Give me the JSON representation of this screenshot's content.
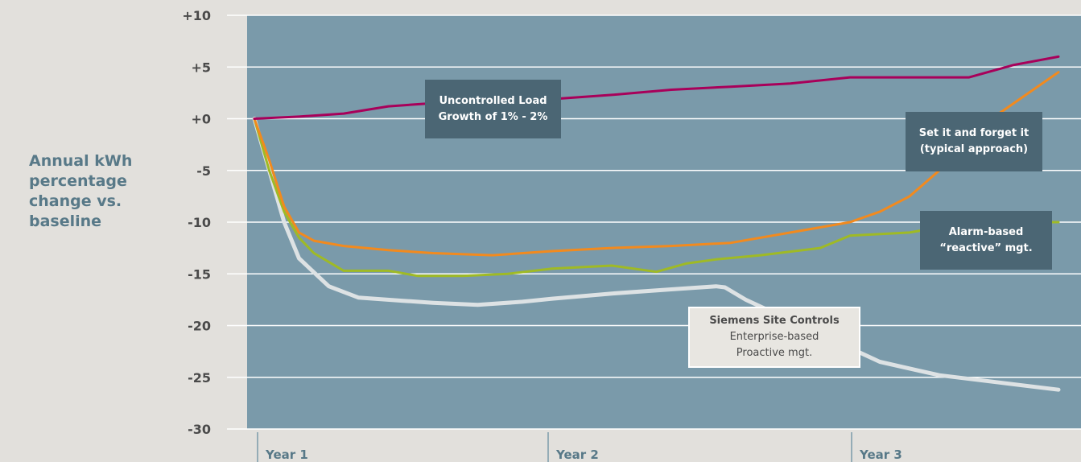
{
  "y_axis_label": "Annual kWh percentage change vs. baseline",
  "annotations": {
    "uncontrolled": [
      "Uncontrolled Load",
      "Growth of 1% - 2%"
    ],
    "set_forget": [
      "Set it and forget it",
      "(typical approach)"
    ],
    "alarm": [
      "Alarm-based",
      "“reactive” mgt."
    ],
    "siemens": {
      "title": "Siemens Site Controls",
      "line1": "Enterprise-based",
      "line2": "Proactive mgt."
    }
  },
  "colors": {
    "background": "#e2e0dc",
    "plot_area": "#7a9aaa",
    "grid": "#ffffff",
    "uncontrolled": "#a8005a",
    "set_forget": "#f28a1e",
    "alarm": "#9fba25",
    "siemens": "#dde2e4"
  },
  "chart_data": {
    "type": "line",
    "ylabel": "Annual kWh percentage change vs. baseline",
    "ylim": [
      -30,
      10
    ],
    "yticks": [
      10,
      5,
      0,
      -5,
      -10,
      -15,
      -20,
      -25,
      -30
    ],
    "ytick_labels": [
      "+10",
      "+5",
      "+0",
      "-5",
      "-10",
      "-15",
      "-20",
      "-25",
      "-30"
    ],
    "x_categories": [
      "Year 1",
      "Year 2",
      "Year 3"
    ],
    "xlim": [
      0,
      2.7
    ],
    "grid": true,
    "series": [
      {
        "key": "uncontrolled",
        "x": [
          0,
          0.15,
          0.3,
          0.45,
          0.6,
          0.8,
          1.0,
          1.2,
          1.4,
          1.6,
          1.8,
          2.0,
          2.2,
          2.4,
          2.55,
          2.7
        ],
        "y": [
          0,
          0.2,
          0.5,
          1.2,
          1.5,
          1.7,
          1.9,
          2.3,
          2.8,
          3.1,
          3.4,
          4.0,
          4.0,
          4.0,
          5.2,
          6.0
        ]
      },
      {
        "key": "set_forget",
        "x": [
          0,
          0.05,
          0.1,
          0.15,
          0.2,
          0.3,
          0.45,
          0.6,
          0.8,
          1.0,
          1.2,
          1.4,
          1.6,
          1.8,
          2.0,
          2.1,
          2.2,
          2.3,
          2.4,
          2.5,
          2.6,
          2.7
        ],
        "y": [
          0,
          -4,
          -8.5,
          -11,
          -11.8,
          -12.3,
          -12.7,
          -13.0,
          -13.2,
          -12.8,
          -12.5,
          -12.3,
          -12.0,
          -11.0,
          -10.0,
          -9.0,
          -7.5,
          -5.0,
          -2.0,
          0.5,
          2.5,
          4.5
        ]
      },
      {
        "key": "alarm",
        "x": [
          0,
          0.05,
          0.1,
          0.15,
          0.2,
          0.3,
          0.45,
          0.55,
          0.7,
          0.85,
          1.0,
          1.2,
          1.35,
          1.45,
          1.55,
          1.7,
          1.9,
          2.0,
          2.2,
          2.4,
          2.7
        ],
        "y": [
          0,
          -5,
          -9,
          -11.5,
          -13,
          -14.7,
          -14.7,
          -15.2,
          -15.2,
          -15.0,
          -14.5,
          -14.2,
          -14.8,
          -14.0,
          -13.6,
          -13.2,
          -12.5,
          -11.3,
          -11.0,
          -10.0,
          -10.0
        ]
      },
      {
        "key": "siemens",
        "x": [
          0,
          0.05,
          0.1,
          0.15,
          0.25,
          0.35,
          0.5,
          0.6,
          0.75,
          0.9,
          1.0,
          1.2,
          1.4,
          1.5,
          1.55,
          1.58,
          1.65,
          1.8,
          1.95,
          2.1,
          2.3,
          2.5,
          2.7
        ],
        "y": [
          0,
          -5,
          -10,
          -13.5,
          -16.2,
          -17.3,
          -17.6,
          -17.8,
          -18.0,
          -17.7,
          -17.4,
          -16.9,
          -16.5,
          -16.3,
          -16.2,
          -16.3,
          -17.5,
          -19.5,
          -21.5,
          -23.5,
          -24.8,
          -25.5,
          -26.2
        ]
      }
    ]
  }
}
